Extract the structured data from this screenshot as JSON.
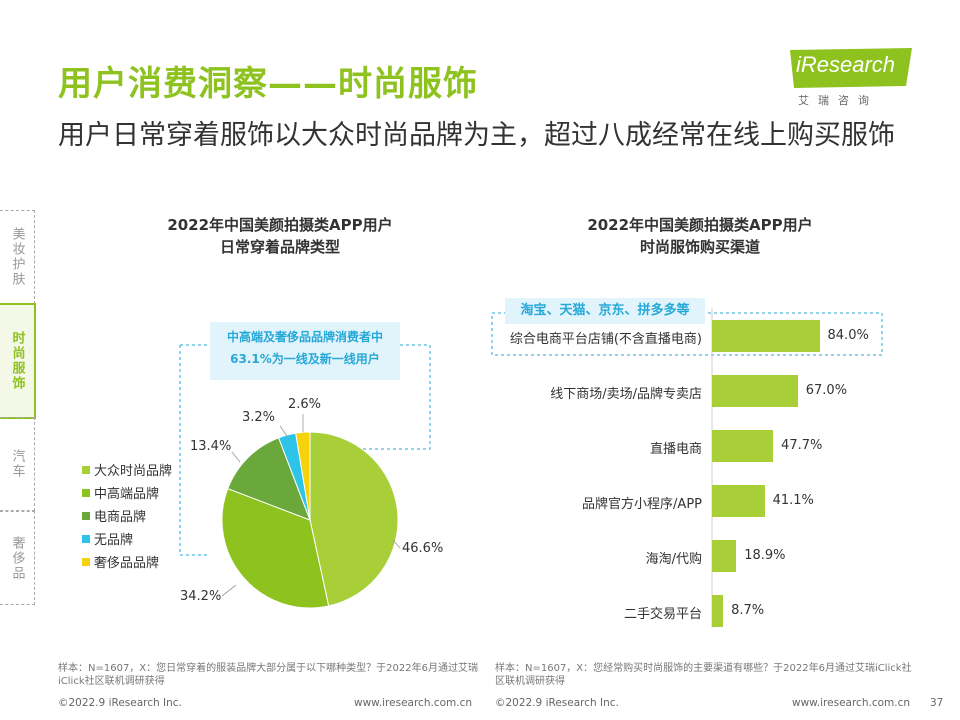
{
  "header": {
    "title": "用户消费洞察——时尚服饰",
    "subtitle": "用户日常穿着服饰以大众时尚品牌为主，超过八成经常在线上购买服饰"
  },
  "logo": {
    "name": "iResearch",
    "sub": "艾瑞咨询",
    "color": "#8dc21f"
  },
  "side_tabs": [
    {
      "label": "美妆护肤",
      "active": false
    },
    {
      "label": "时尚服饰",
      "active": true
    },
    {
      "label": "汽车",
      "active": false
    },
    {
      "label": "奢侈品",
      "active": false
    }
  ],
  "colors": {
    "accent": "#8dc21f",
    "highlight": "#26a8d8"
  },
  "left_panel": {
    "title_line1": "2022年中国美颜拍摄类APP用户",
    "title_line2": "日常穿着品牌类型",
    "callout": "中高端及奢侈品品牌消费者中63.1%为一线及新一线用户",
    "footnote": "样本：N=1607，X：您日常穿着的服装品牌大部分属于以下哪种类型？于2022年6月通过艾瑞iClick社区联机调研获得"
  },
  "right_panel": {
    "title_line1": "2022年中国美颜拍摄类APP用户",
    "title_line2": "时尚服饰购买渠道",
    "tag": "淘宝、天猫、京东、拼多多等",
    "footnote": "样本：N=1607，X：您经常购买时尚服饰的主要渠道有哪些？于2022年6月通过艾瑞iClick社区联机调研获得"
  },
  "footer": {
    "copyright_left": "©2022.9 iResearch Inc.",
    "url_left": "www.iresearch.com.cn",
    "copyright_right": "©2022.9 iResearch Inc.",
    "url_right": "www.iresearch.com.cn",
    "page_number": "37"
  },
  "chart_data": [
    {
      "type": "pie",
      "title": "2022年中国美颜拍摄类APP用户日常穿着品牌类型",
      "categories": [
        "大众时尚品牌",
        "中高端品牌",
        "电商品牌",
        "无品牌",
        "奢侈品品牌"
      ],
      "values": [
        46.6,
        34.2,
        13.4,
        3.2,
        2.6
      ],
      "value_labels": [
        "46.6%",
        "34.2%",
        "13.4%",
        "3.2%",
        "2.6%"
      ],
      "colors": [
        "#a9cf38",
        "#8dc21f",
        "#6aa83c",
        "#2ec4e8",
        "#f5d20a"
      ],
      "legend_position": "left"
    },
    {
      "type": "bar",
      "orientation": "horizontal",
      "title": "2022年中国美颜拍摄类APP用户时尚服饰购买渠道",
      "categories": [
        "综合电商平台店铺(不含直播电商)",
        "线下商场/卖场/品牌专卖店",
        "直播电商",
        "品牌官方小程序/APP",
        "海淘/代购",
        "二手交易平台"
      ],
      "values": [
        84.0,
        67.0,
        47.7,
        41.1,
        18.9,
        8.7
      ],
      "value_labels": [
        "84.0%",
        "67.0%",
        "47.7%",
        "41.1%",
        "18.9%",
        "8.7%"
      ],
      "xlim": [
        0,
        100
      ],
      "color": "#a9cf38"
    }
  ]
}
